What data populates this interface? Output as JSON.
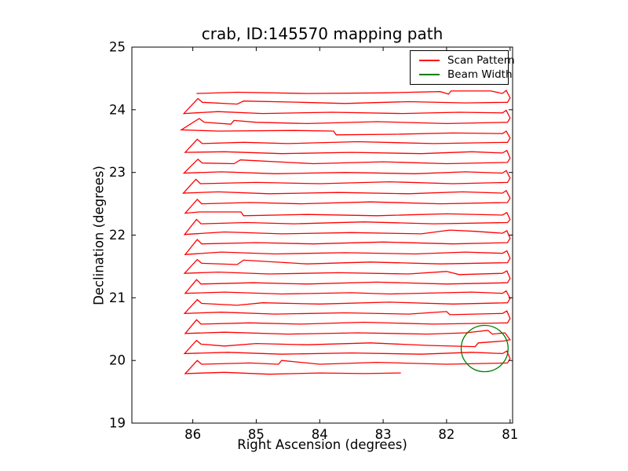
{
  "chart_data": {
    "type": "line",
    "title": "crab, ID:145570 mapping path",
    "xlabel": "Right Ascension (degrees)",
    "ylabel": "Declination (degrees)",
    "x_ticks": [
      86,
      85,
      84,
      83,
      82,
      81
    ],
    "y_ticks": [
      19,
      20,
      21,
      22,
      23,
      24,
      25
    ],
    "xlim": [
      86.96,
      80.96
    ],
    "ylim": [
      19,
      25
    ],
    "x_inverted": true,
    "grid": false,
    "tick_direction": "in",
    "legend": {
      "position": "upper right",
      "items": [
        {
          "label": "Scan Pattern",
          "color": "#ff0000"
        },
        {
          "label": "Beam Width",
          "color": "#008000"
        }
      ]
    },
    "series": [
      {
        "name": "Scan Pattern",
        "color": "#ff0000",
        "kind": "path",
        "points": [
          [
            85.94,
            24.26
          ],
          [
            85.3,
            24.28
          ],
          [
            84.2,
            24.26
          ],
          [
            83.0,
            24.27
          ],
          [
            82.1,
            24.29
          ],
          [
            81.97,
            24.25
          ],
          [
            81.93,
            24.3
          ],
          [
            81.3,
            24.3
          ],
          [
            81.12,
            24.26
          ],
          [
            81.06,
            24.31
          ],
          [
            81.0,
            24.19
          ],
          [
            81.04,
            24.12
          ],
          [
            81.7,
            24.11
          ],
          [
            82.6,
            24.13
          ],
          [
            83.6,
            24.1
          ],
          [
            84.3,
            24.12
          ],
          [
            85.2,
            24.14
          ],
          [
            85.3,
            24.09
          ],
          [
            85.85,
            24.12
          ],
          [
            85.92,
            24.18
          ],
          [
            86.14,
            23.94
          ],
          [
            85.6,
            23.97
          ],
          [
            84.9,
            23.94
          ],
          [
            83.8,
            23.96
          ],
          [
            82.7,
            23.94
          ],
          [
            81.8,
            23.96
          ],
          [
            81.12,
            23.95
          ],
          [
            81.06,
            23.99
          ],
          [
            81.0,
            23.87
          ],
          [
            81.04,
            23.8
          ],
          [
            82.0,
            23.78
          ],
          [
            83.1,
            23.81
          ],
          [
            84.2,
            23.78
          ],
          [
            85.0,
            23.8
          ],
          [
            85.35,
            23.83
          ],
          [
            85.4,
            23.77
          ],
          [
            85.82,
            23.8
          ],
          [
            85.9,
            23.86
          ],
          [
            86.18,
            23.68
          ],
          [
            85.6,
            23.66
          ],
          [
            84.4,
            23.67
          ],
          [
            83.78,
            23.66
          ],
          [
            83.74,
            23.6
          ],
          [
            82.8,
            23.61
          ],
          [
            81.9,
            23.63
          ],
          [
            81.12,
            23.62
          ],
          [
            81.06,
            23.66
          ],
          [
            81.0,
            23.55
          ],
          [
            81.04,
            23.48
          ],
          [
            82.2,
            23.46
          ],
          [
            83.4,
            23.49
          ],
          [
            84.5,
            23.46
          ],
          [
            85.2,
            23.48
          ],
          [
            85.85,
            23.46
          ],
          [
            85.93,
            23.53
          ],
          [
            86.12,
            23.32
          ],
          [
            85.5,
            23.33
          ],
          [
            84.6,
            23.3
          ],
          [
            83.5,
            23.32
          ],
          [
            82.4,
            23.3
          ],
          [
            81.6,
            23.33
          ],
          [
            81.12,
            23.31
          ],
          [
            81.05,
            23.35
          ],
          [
            81.0,
            23.23
          ],
          [
            81.04,
            23.16
          ],
          [
            82.0,
            23.14
          ],
          [
            83.0,
            23.17
          ],
          [
            84.1,
            23.14
          ],
          [
            85.25,
            23.2
          ],
          [
            85.35,
            23.14
          ],
          [
            85.85,
            23.15
          ],
          [
            85.92,
            23.21
          ],
          [
            86.14,
            22.99
          ],
          [
            85.55,
            23.01
          ],
          [
            84.7,
            22.98
          ],
          [
            83.6,
            23.0
          ],
          [
            82.5,
            22.98
          ],
          [
            81.7,
            23.01
          ],
          [
            81.12,
            22.99
          ],
          [
            81.06,
            23.03
          ],
          [
            81.0,
            22.91
          ],
          [
            81.04,
            22.84
          ],
          [
            81.9,
            22.82
          ],
          [
            82.9,
            22.85
          ],
          [
            84.0,
            22.82
          ],
          [
            85.0,
            22.84
          ],
          [
            85.88,
            22.82
          ],
          [
            85.95,
            22.89
          ],
          [
            86.15,
            22.67
          ],
          [
            85.6,
            22.69
          ],
          [
            84.8,
            22.66
          ],
          [
            83.7,
            22.68
          ],
          [
            82.6,
            22.66
          ],
          [
            81.75,
            22.69
          ],
          [
            81.12,
            22.67
          ],
          [
            81.06,
            22.71
          ],
          [
            81.0,
            22.59
          ],
          [
            81.04,
            22.52
          ],
          [
            82.1,
            22.5
          ],
          [
            83.2,
            22.53
          ],
          [
            84.3,
            22.5
          ],
          [
            85.1,
            22.52
          ],
          [
            85.86,
            22.5
          ],
          [
            85.93,
            22.57
          ],
          [
            86.12,
            22.35
          ],
          [
            85.9,
            22.37
          ],
          [
            85.24,
            22.37
          ],
          [
            85.2,
            22.31
          ],
          [
            84.2,
            22.33
          ],
          [
            83.1,
            22.31
          ],
          [
            82.0,
            22.34
          ],
          [
            81.12,
            22.32
          ],
          [
            81.05,
            22.36
          ],
          [
            81.0,
            22.25
          ],
          [
            81.04,
            22.2
          ],
          [
            82.2,
            22.18
          ],
          [
            83.3,
            22.21
          ],
          [
            84.4,
            22.18
          ],
          [
            85.15,
            22.2
          ],
          [
            85.87,
            22.18
          ],
          [
            85.94,
            22.25
          ],
          [
            86.13,
            22.01
          ],
          [
            85.5,
            22.05
          ],
          [
            84.6,
            22.02
          ],
          [
            83.5,
            22.04
          ],
          [
            82.4,
            22.02
          ],
          [
            81.95,
            22.08
          ],
          [
            81.55,
            22.06
          ],
          [
            81.12,
            22.03
          ],
          [
            81.05,
            22.07
          ],
          [
            81.0,
            21.95
          ],
          [
            81.04,
            21.88
          ],
          [
            81.9,
            21.86
          ],
          [
            83.0,
            21.89
          ],
          [
            84.1,
            21.86
          ],
          [
            85.0,
            21.88
          ],
          [
            85.86,
            21.86
          ],
          [
            85.93,
            21.93
          ],
          [
            86.12,
            21.69
          ],
          [
            85.55,
            21.73
          ],
          [
            84.7,
            21.7
          ],
          [
            83.6,
            21.72
          ],
          [
            82.5,
            21.7
          ],
          [
            81.7,
            21.73
          ],
          [
            81.12,
            21.71
          ],
          [
            81.05,
            21.75
          ],
          [
            81.0,
            21.63
          ],
          [
            81.04,
            21.56
          ],
          [
            82.1,
            21.54
          ],
          [
            83.2,
            21.57
          ],
          [
            84.2,
            21.54
          ],
          [
            85.2,
            21.6
          ],
          [
            85.3,
            21.53
          ],
          [
            85.86,
            21.55
          ],
          [
            85.93,
            21.61
          ],
          [
            86.13,
            21.39
          ],
          [
            85.6,
            21.41
          ],
          [
            84.8,
            21.38
          ],
          [
            83.7,
            21.4
          ],
          [
            82.6,
            21.38
          ],
          [
            82.0,
            21.42
          ],
          [
            81.8,
            21.37
          ],
          [
            81.12,
            21.39
          ],
          [
            81.05,
            21.43
          ],
          [
            81.0,
            21.31
          ],
          [
            81.04,
            21.24
          ],
          [
            82.0,
            21.22
          ],
          [
            83.1,
            21.25
          ],
          [
            84.2,
            21.22
          ],
          [
            85.05,
            21.24
          ],
          [
            85.87,
            21.22
          ],
          [
            85.94,
            21.29
          ],
          [
            86.12,
            21.07
          ],
          [
            85.5,
            21.09
          ],
          [
            84.6,
            21.06
          ],
          [
            83.5,
            21.08
          ],
          [
            82.9,
            21.06
          ],
          [
            81.6,
            21.09
          ],
          [
            81.12,
            21.07
          ],
          [
            81.06,
            21.11
          ],
          [
            81.0,
            20.99
          ],
          [
            81.04,
            20.92
          ],
          [
            81.9,
            20.9
          ],
          [
            82.9,
            20.93
          ],
          [
            84.0,
            20.9
          ],
          [
            84.9,
            20.92
          ],
          [
            85.3,
            20.88
          ],
          [
            85.86,
            20.91
          ],
          [
            85.93,
            20.97
          ],
          [
            86.13,
            20.75
          ],
          [
            85.55,
            20.77
          ],
          [
            84.7,
            20.74
          ],
          [
            83.6,
            20.76
          ],
          [
            82.6,
            20.74
          ],
          [
            82.0,
            20.78
          ],
          [
            81.95,
            20.73
          ],
          [
            81.12,
            20.75
          ],
          [
            81.05,
            20.79
          ],
          [
            81.0,
            20.67
          ],
          [
            81.04,
            20.6
          ],
          [
            82.2,
            20.58
          ],
          [
            83.3,
            20.61
          ],
          [
            84.3,
            20.58
          ],
          [
            85.1,
            20.6
          ],
          [
            85.87,
            20.58
          ],
          [
            85.94,
            20.65
          ],
          [
            86.12,
            20.43
          ],
          [
            85.5,
            20.45
          ],
          [
            84.5,
            20.42
          ],
          [
            83.4,
            20.44
          ],
          [
            82.3,
            20.42
          ],
          [
            81.7,
            20.44
          ],
          [
            81.35,
            20.48
          ],
          [
            81.28,
            20.42
          ],
          [
            81.08,
            20.44
          ],
          [
            81.0,
            20.33
          ],
          [
            81.1,
            20.31
          ],
          [
            81.5,
            20.28
          ],
          [
            81.55,
            20.22
          ],
          [
            82.3,
            20.24
          ],
          [
            83.2,
            20.28
          ],
          [
            84.2,
            20.25
          ],
          [
            85.0,
            20.27
          ],
          [
            85.5,
            20.23
          ],
          [
            85.87,
            20.26
          ],
          [
            85.94,
            20.32
          ],
          [
            86.13,
            20.11
          ],
          [
            85.45,
            20.13
          ],
          [
            84.6,
            20.1
          ],
          [
            83.5,
            20.12
          ],
          [
            82.4,
            20.1
          ],
          [
            81.6,
            20.13
          ],
          [
            81.12,
            20.11
          ],
          [
            81.05,
            20.15
          ],
          [
            81.0,
            20.03
          ],
          [
            81.04,
            19.96
          ],
          [
            82.0,
            19.94
          ],
          [
            83.1,
            19.97
          ],
          [
            84.0,
            19.94
          ],
          [
            84.6,
            20.0
          ],
          [
            84.65,
            19.94
          ],
          [
            85.1,
            19.96
          ],
          [
            85.86,
            19.94
          ],
          [
            85.93,
            20.0
          ],
          [
            86.12,
            19.79
          ],
          [
            85.5,
            19.81
          ],
          [
            84.8,
            19.78
          ],
          [
            84.0,
            19.8
          ],
          [
            83.3,
            19.79
          ],
          [
            82.72,
            19.8
          ]
        ]
      },
      {
        "name": "Beam Width",
        "color": "#008000",
        "kind": "circle",
        "center": [
          81.4,
          20.19
        ],
        "radius": 0.37
      }
    ]
  }
}
